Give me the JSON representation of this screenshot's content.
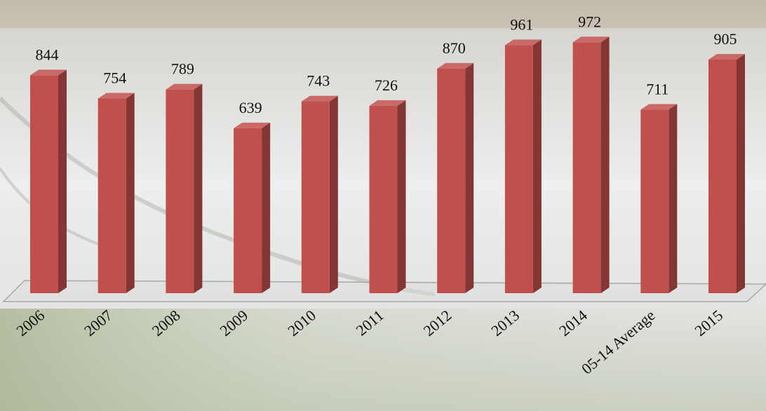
{
  "chart_data": {
    "type": "bar",
    "categories": [
      "2006",
      "2007",
      "2008",
      "2009",
      "2010",
      "2011",
      "2012",
      "2013",
      "2014",
      "05-14 Average",
      "2015"
    ],
    "values": [
      844,
      754,
      789,
      639,
      743,
      726,
      870,
      961,
      972,
      711,
      905
    ],
    "color": "#c0504d"
  }
}
